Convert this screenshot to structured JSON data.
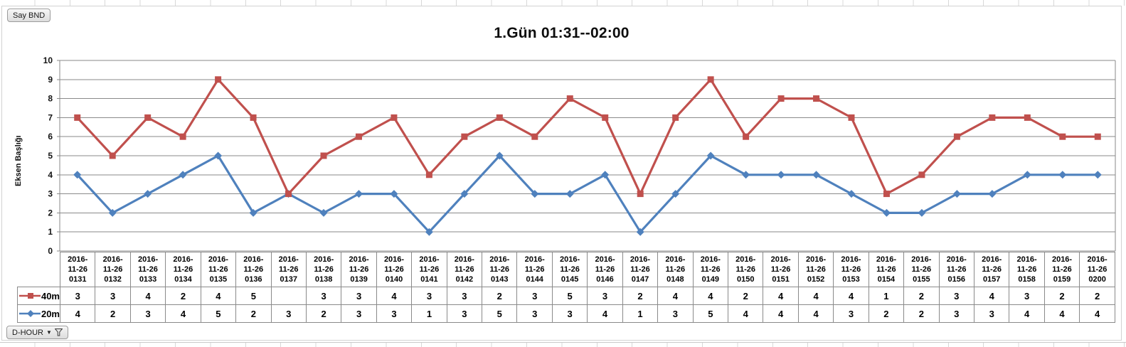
{
  "pivot_buttons": {
    "value_field": "Say BND",
    "axis_field": "D-HOUR"
  },
  "chart_data": {
    "type": "line",
    "stacked": true,
    "title": "1.Gün 01:31--02:00",
    "ylabel": "Eksen Başlığı",
    "xlabel": "",
    "ylim": [
      0,
      10
    ],
    "ytick_step": 1,
    "grid": "horizontal",
    "legend_position": "data-table-left",
    "colors": {
      "grid": "#8a8a8a",
      "axis_text": "#141414",
      "series_40m": "#C0504D",
      "series_20m": "#4F81BD"
    },
    "categories": [
      "2016-11-26 0131",
      "2016-11-26 0132",
      "2016-11-26 0133",
      "2016-11-26 0134",
      "2016-11-26 0135",
      "2016-11-26 0136",
      "2016-11-26 0137",
      "2016-11-26 0138",
      "2016-11-26 0139",
      "2016-11-26 0140",
      "2016-11-26 0141",
      "2016-11-26 0142",
      "2016-11-26 0143",
      "2016-11-26 0144",
      "2016-11-26 0145",
      "2016-11-26 0146",
      "2016-11-26 0147",
      "2016-11-26 0148",
      "2016-11-26 0149",
      "2016-11-26 0150",
      "2016-11-26 0151",
      "2016-11-26 0152",
      "2016-11-26 0153",
      "2016-11-26 0154",
      "2016-11-26 0155",
      "2016-11-26 0156",
      "2016-11-26 0157",
      "2016-11-26 0158",
      "2016-11-26 0159",
      "2016-11-26 0200"
    ],
    "series": [
      {
        "name": "40m",
        "color": "#C0504D",
        "marker": "square",
        "values": [
          3,
          3,
          4,
          2,
          4,
          5,
          null,
          3,
          3,
          4,
          3,
          3,
          2,
          3,
          5,
          3,
          2,
          4,
          4,
          2,
          4,
          4,
          4,
          1,
          2,
          3,
          4,
          3,
          2,
          2
        ]
      },
      {
        "name": "20m",
        "color": "#4F81BD",
        "marker": "diamond",
        "values": [
          4,
          2,
          3,
          4,
          5,
          2,
          3,
          2,
          3,
          3,
          1,
          3,
          5,
          3,
          3,
          4,
          1,
          3,
          5,
          4,
          4,
          4,
          3,
          2,
          2,
          3,
          3,
          4,
          4,
          4
        ]
      }
    ]
  }
}
